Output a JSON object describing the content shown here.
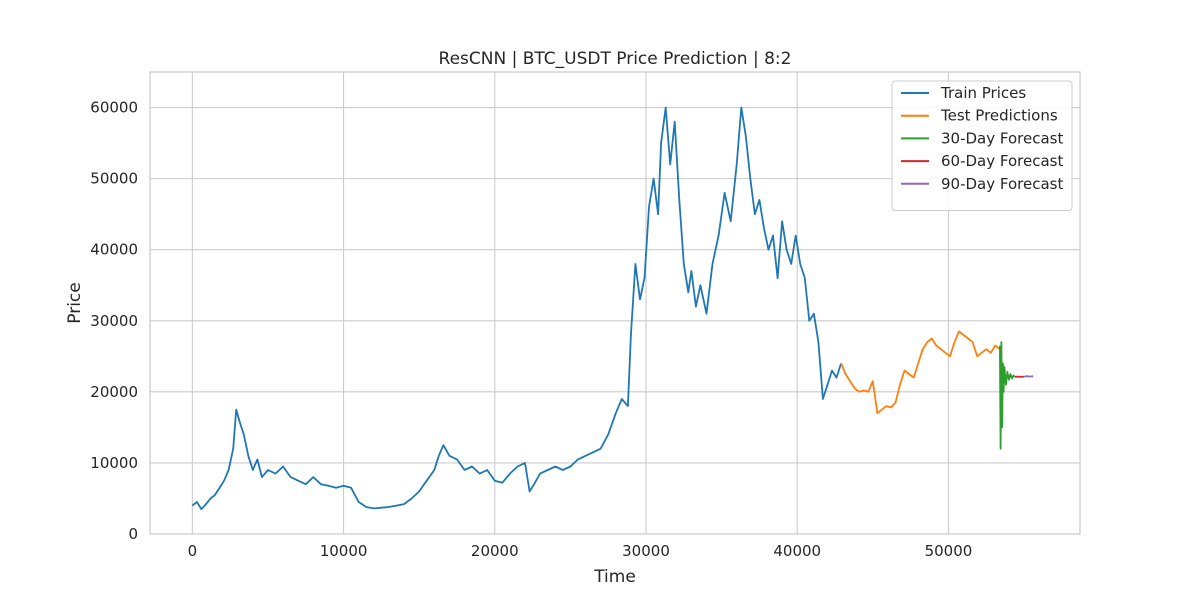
{
  "chart_data": {
    "type": "line",
    "title": "ResCNN | BTC_USDT Price Prediction | 8:2",
    "xlabel": "Time",
    "ylabel": "Price",
    "xlim": [
      -2800,
      58700
    ],
    "ylim": [
      0,
      65000
    ],
    "xticks": [
      0,
      10000,
      20000,
      30000,
      40000,
      50000
    ],
    "yticks": [
      0,
      10000,
      20000,
      30000,
      40000,
      50000,
      60000
    ],
    "grid": true,
    "legend_position": "top-right",
    "series": [
      {
        "name": "Train Prices",
        "color": "#1f77b4",
        "x": [
          0,
          300,
          600,
          900,
          1200,
          1500,
          1800,
          2100,
          2400,
          2700,
          2900,
          3100,
          3400,
          3700,
          4000,
          4300,
          4600,
          5000,
          5500,
          6000,
          6500,
          7000,
          7500,
          8000,
          8500,
          9000,
          9500,
          10000,
          10500,
          11000,
          11500,
          12000,
          12500,
          13000,
          13500,
          14000,
          14500,
          15000,
          15500,
          16000,
          16300,
          16600,
          17000,
          17500,
          18000,
          18500,
          19000,
          19500,
          20000,
          20500,
          21000,
          21500,
          22000,
          22300,
          22600,
          23000,
          23500,
          24000,
          24500,
          25000,
          25500,
          26000,
          26500,
          27000,
          27500,
          28000,
          28400,
          28800,
          29000,
          29300,
          29600,
          29900,
          30200,
          30500,
          30800,
          31000,
          31300,
          31600,
          31900,
          32200,
          32500,
          32800,
          33000,
          33300,
          33600,
          34000,
          34400,
          34800,
          35200,
          35600,
          36000,
          36300,
          36600,
          36900,
          37200,
          37500,
          37800,
          38100,
          38400,
          38700,
          39000,
          39300,
          39600,
          39900,
          40200,
          40500,
          40800,
          41100,
          41400,
          41700,
          42000,
          42300,
          42600,
          42900
        ],
        "y": [
          4000,
          4500,
          3500,
          4200,
          5000,
          5500,
          6500,
          7500,
          9000,
          12000,
          17500,
          16000,
          14000,
          11000,
          9000,
          10500,
          8000,
          9000,
          8500,
          9500,
          8000,
          7500,
          7000,
          8000,
          7000,
          6800,
          6500,
          6800,
          6500,
          4500,
          3800,
          3600,
          3700,
          3800,
          4000,
          4200,
          5000,
          6000,
          7500,
          9000,
          11000,
          12500,
          11000,
          10500,
          9000,
          9500,
          8500,
          9000,
          7500,
          7200,
          8500,
          9500,
          10000,
          6000,
          7000,
          8500,
          9000,
          9500,
          9000,
          9500,
          10500,
          11000,
          11500,
          12000,
          14000,
          17000,
          19000,
          18000,
          28000,
          38000,
          33000,
          36000,
          46000,
          50000,
          45000,
          55000,
          60000,
          52000,
          58000,
          47000,
          38000,
          34000,
          37000,
          32000,
          35000,
          31000,
          38000,
          42000,
          48000,
          44000,
          52000,
          60000,
          56000,
          50000,
          45000,
          47000,
          43000,
          40000,
          42000,
          36000,
          44000,
          40000,
          38000,
          42000,
          38000,
          36000,
          30000,
          31000,
          27000,
          19000,
          21000,
          23000,
          22000,
          24000
        ]
      },
      {
        "name": "Test Predictions",
        "color": "#ff7f0e",
        "x": [
          42900,
          43200,
          43500,
          43800,
          44100,
          44400,
          44700,
          45000,
          45300,
          45600,
          45900,
          46200,
          46500,
          46800,
          47100,
          47400,
          47700,
          48000,
          48300,
          48600,
          48900,
          49200,
          49500,
          49800,
          50100,
          50400,
          50700,
          51000,
          51300,
          51600,
          51900,
          52200,
          52500,
          52800,
          53100,
          53400
        ],
        "y": [
          24000,
          22500,
          21500,
          20500,
          20000,
          20200,
          20000,
          21500,
          17000,
          17500,
          18000,
          17800,
          18500,
          21000,
          23000,
          22500,
          22000,
          24000,
          26000,
          27000,
          27500,
          26500,
          26000,
          25500,
          25000,
          27000,
          28500,
          28000,
          27500,
          27000,
          25000,
          25500,
          26000,
          25500,
          26500,
          26000
        ]
      },
      {
        "name": "30-Day Forecast",
        "color": "#2ca02c",
        "x": [
          53400,
          53450,
          53500,
          53550,
          53600,
          53650,
          53700,
          53800,
          53900,
          54000,
          54100,
          54200,
          54300,
          54400
        ],
        "y": [
          26500,
          12000,
          27000,
          15000,
          24000,
          20000,
          23500,
          21000,
          22800,
          21700,
          22500,
          21900,
          22300,
          22100
        ]
      },
      {
        "name": "60-Day Forecast",
        "color": "#d62728",
        "x": [
          54400,
          54600,
          54800,
          55000
        ],
        "y": [
          22100,
          22150,
          22100,
          22150
        ]
      },
      {
        "name": "90-Day Forecast",
        "color": "#9467bd",
        "x": [
          55000,
          55200,
          55400,
          55600
        ],
        "y": [
          22150,
          22200,
          22150,
          22200
        ]
      }
    ]
  }
}
